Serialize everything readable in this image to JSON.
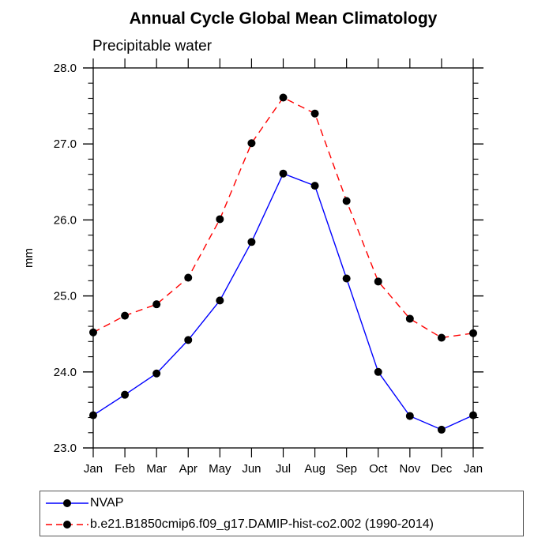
{
  "chart_data": {
    "type": "line",
    "title": "Annual Cycle Global Mean Climatology",
    "subtitle": "Precipitable water",
    "ylabel": "mm",
    "categories": [
      "Jan",
      "Feb",
      "Mar",
      "Apr",
      "May",
      "Jun",
      "Jul",
      "Aug",
      "Sep",
      "Oct",
      "Nov",
      "Dec",
      "Jan"
    ],
    "series": [
      {
        "name": "NVAP",
        "color": "#0000ff",
        "dash": "solid",
        "marker": "filled-circle",
        "values": [
          23.43,
          23.7,
          23.98,
          24.42,
          24.94,
          25.71,
          26.61,
          26.45,
          25.23,
          24.0,
          23.42,
          23.24,
          23.43
        ]
      },
      {
        "name": "b.e21.B1850cmip6.f09_g17.DAMIP-hist-co2.002 (1990-2014)",
        "color": "#ff0000",
        "dash": "dashed",
        "marker": "filled-circle",
        "values": [
          24.52,
          24.74,
          24.89,
          25.24,
          26.01,
          27.01,
          27.61,
          27.4,
          26.25,
          25.19,
          24.7,
          24.45,
          24.51
        ]
      }
    ],
    "ylim": [
      23.0,
      28.0
    ],
    "ytick_major_interval": 1.0,
    "ytick_minor_interval": 0.2,
    "ytick_labels": [
      "23.0",
      "24.0",
      "25.0",
      "26.0",
      "27.0",
      "28.0"
    ],
    "grid": false,
    "legend_position": "bottom-left",
    "marker_color": "#000000",
    "axis_color": "#000000",
    "text_color": "#000000"
  }
}
